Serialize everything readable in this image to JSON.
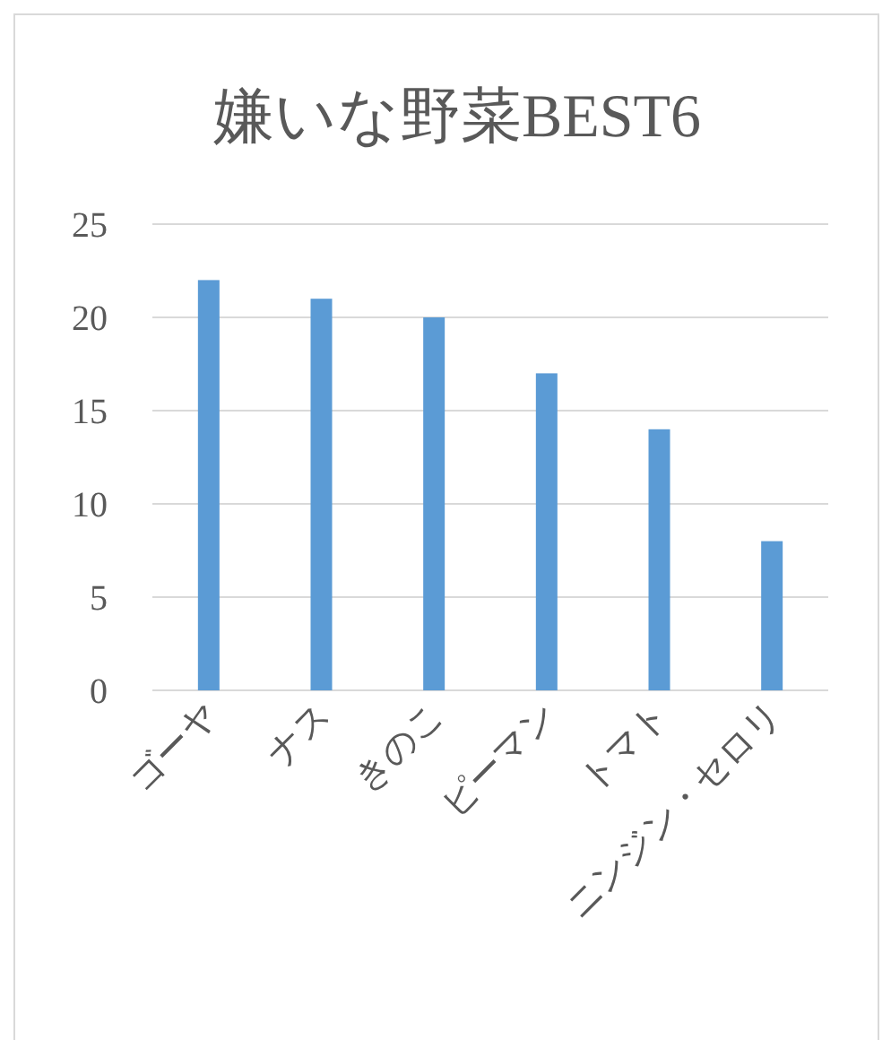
{
  "chart_data": {
    "type": "bar",
    "title": "嫌いな野菜BEST6",
    "categories": [
      "ゴーヤ",
      "ナス",
      "きのこ",
      "ピーマン",
      "トマト",
      "ニンジン・セロリ"
    ],
    "values": [
      22,
      21,
      20,
      17,
      14,
      8
    ],
    "color": "#5b9bd5",
    "ylim": [
      0,
      25
    ],
    "yticks": [
      0,
      5,
      10,
      15,
      20,
      25
    ],
    "grid": "y"
  }
}
